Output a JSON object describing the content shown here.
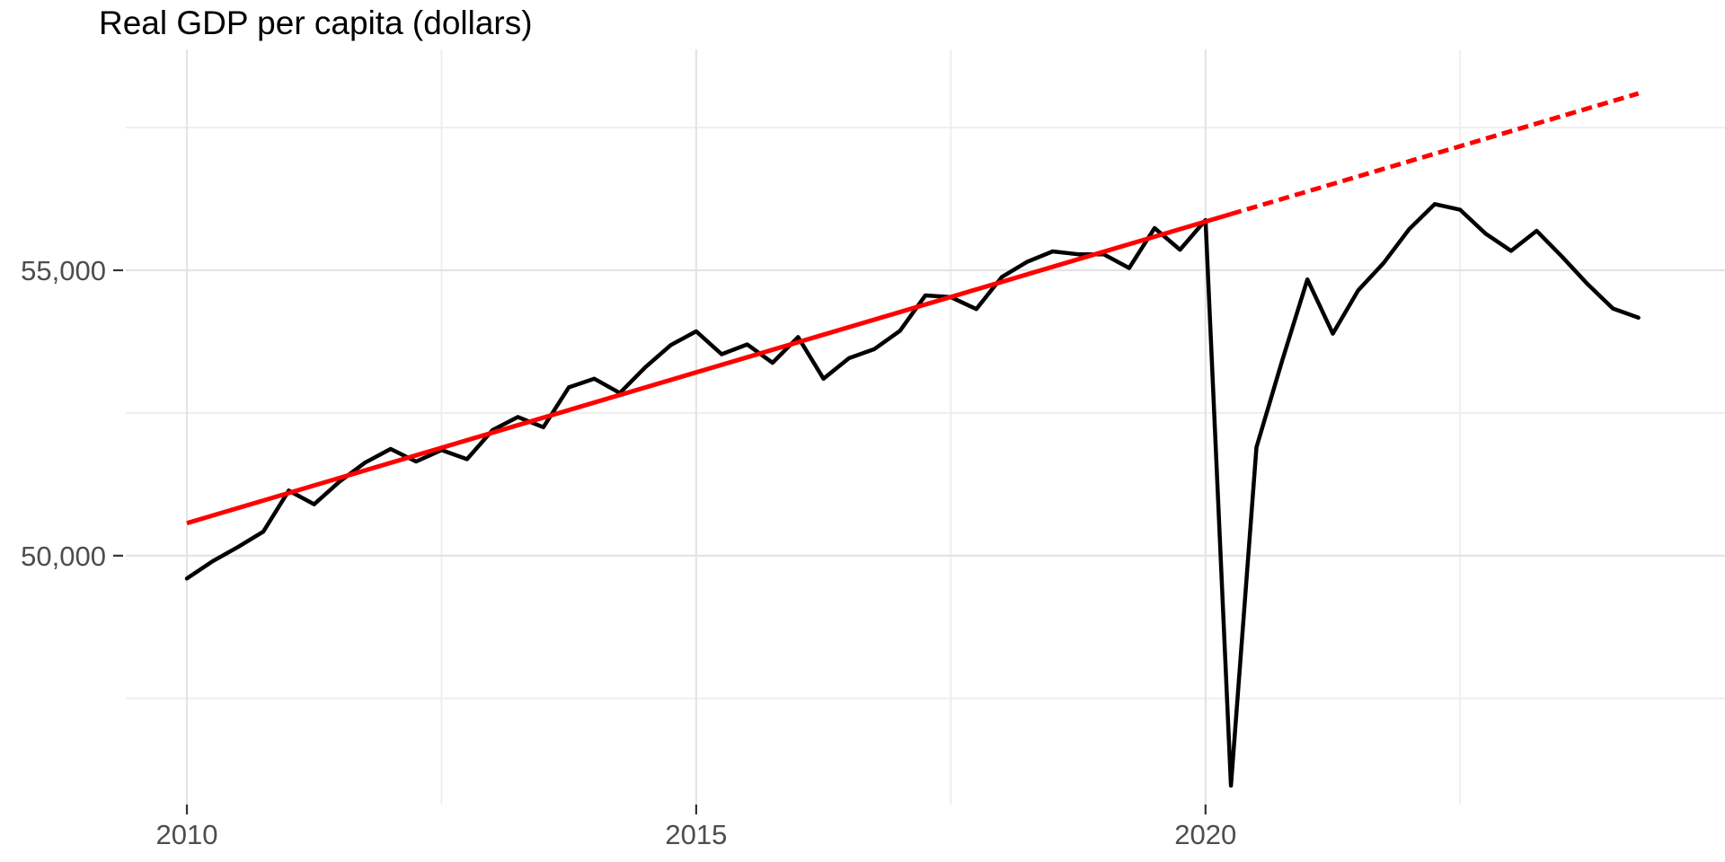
{
  "chart_data": {
    "type": "line",
    "title": "Real GDP per capita (dollars)",
    "xlabel": "",
    "ylabel": "",
    "grid": true,
    "legend_position": "none",
    "background": "#ffffff",
    "colors": {
      "series": "#000000",
      "trend": "#ff0000",
      "grid_major": "#e4e4e4",
      "grid_minor": "#ededed",
      "axis_text": "#4d4d4d",
      "tick_mark": "#333333"
    },
    "x_range": [
      2009.4,
      2025.1
    ],
    "y_range": [
      45640,
      58870
    ],
    "x_ticks": [
      {
        "pos": 2010,
        "label": "2010"
      },
      {
        "pos": 2015,
        "label": "2015"
      },
      {
        "pos": 2020,
        "label": "2020"
      }
    ],
    "x_minor": [
      2012.5,
      2017.5,
      2022.5
    ],
    "y_ticks": [
      {
        "pos": 50000,
        "label": "50,000"
      },
      {
        "pos": 55000,
        "label": "55,000"
      }
    ],
    "y_minor": [
      47500,
      52500,
      57500
    ],
    "series": [
      {
        "name": "real-gdp-per-capita",
        "kind": "quarterly-line",
        "color_key": "series",
        "width": 4.5,
        "x_start": 2010.0,
        "x_step": 0.25,
        "values": [
          49600,
          49900,
          50150,
          50420,
          51140,
          50900,
          51300,
          51630,
          51870,
          51650,
          51850,
          51690,
          52200,
          52430,
          52250,
          52950,
          53100,
          52850,
          53300,
          53690,
          53930,
          53530,
          53700,
          53380,
          53830,
          53100,
          53460,
          53620,
          53940,
          54560,
          54530,
          54320,
          54880,
          55150,
          55330,
          55280,
          55280,
          55040,
          55740,
          55360,
          55880,
          45970,
          51900,
          53400,
          54840,
          53890,
          54650,
          55130,
          55720,
          56160,
          56060,
          55640,
          55340,
          55690,
          55240,
          54760,
          54330,
          54170
        ]
      },
      {
        "name": "trend-line-solid",
        "kind": "segment",
        "color_key": "trend",
        "width": 5,
        "dash": "",
        "points": [
          [
            2010.0,
            50570
          ],
          [
            2020.25,
            55985
          ]
        ]
      },
      {
        "name": "trend-projection-dashed",
        "kind": "segment",
        "color_key": "trend",
        "width": 5,
        "dash": "12 6.5",
        "points": [
          [
            2020.25,
            55985
          ],
          [
            2024.25,
            58098
          ]
        ]
      }
    ]
  }
}
